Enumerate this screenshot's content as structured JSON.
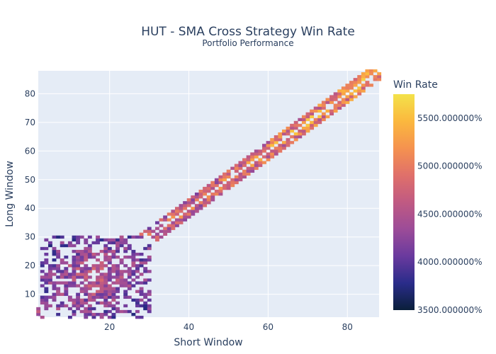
{
  "chart_data": {
    "type": "heatmap",
    "title": "HUT - SMA Cross Strategy Win Rate",
    "subtitle": "Portfolio Performance",
    "xlabel": "Short Window",
    "ylabel": "Long Window",
    "xlim": [
      2,
      88
    ],
    "ylim": [
      2,
      88
    ],
    "x_ticks": [
      20,
      40,
      60,
      80
    ],
    "y_ticks": [
      10,
      20,
      30,
      40,
      50,
      60,
      70,
      80
    ],
    "colorbar": {
      "title": "Win Rate",
      "range": [
        3500,
        5750
      ],
      "ticks": [
        3500,
        4000,
        4500,
        5000,
        5500
      ],
      "tick_labels": [
        "3500.000000%",
        "4000.000000%",
        "4500.000000%",
        "5000.000000%",
        "5500.000000%"
      ],
      "colorscale": [
        "#0d0887",
        "#46039f",
        "#7201a8",
        "#9c179e",
        "#bd3786",
        "#d8576b",
        "#ed7953",
        "#fb9f3a",
        "#fdca26",
        "#f0f921"
      ],
      "scale_colors": [
        "#0a1f3a",
        "#2a2c8a",
        "#6a3a9e",
        "#9c4c98",
        "#c05a82",
        "#e0706a",
        "#f5924f",
        "#fbb83e",
        "#f3e24a"
      ]
    },
    "structure": {
      "diagonal_band": {
        "from_x": 2,
        "to_x": 88,
        "band_halfwidth": 3,
        "gap_on_diagonal": true
      },
      "dense_cluster": {
        "x_range": [
          3,
          30
        ],
        "y_range": [
          2,
          30
        ]
      }
    },
    "grid": true,
    "background": "#e5ecf6"
  }
}
